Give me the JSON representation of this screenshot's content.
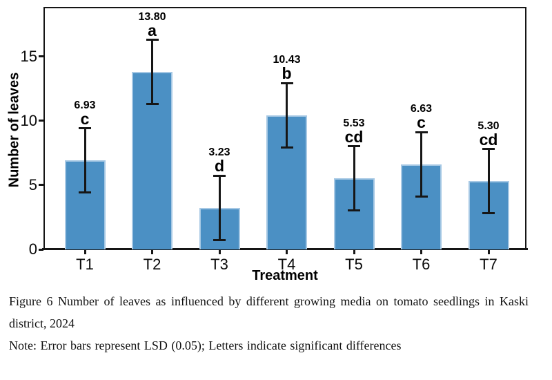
{
  "chart_data": {
    "type": "bar",
    "title": "",
    "xlabel": "Treatment",
    "ylabel": "Number of leaves",
    "categories": [
      "T1",
      "T2",
      "T3",
      "T4",
      "T5",
      "T6",
      "T7"
    ],
    "values": [
      6.93,
      13.8,
      3.23,
      10.43,
      5.53,
      6.63,
      5.3
    ],
    "value_labels": [
      "6.93",
      "13.80",
      "3.23",
      "10.43",
      "5.53",
      "6.63",
      "5.30"
    ],
    "sig_letters": [
      "c",
      "a",
      "d",
      "b",
      "cd",
      "c",
      "cd"
    ],
    "error_bar_halfwidth": 2.5,
    "ylim": [
      0,
      18.87
    ],
    "yticks": [
      0,
      5,
      10,
      15
    ],
    "grid": false,
    "legend": null,
    "bar_color": "#4b90c4",
    "bar_border_color": "#a6c8e4",
    "axis_color": "#151515"
  },
  "caption": {
    "line1": "Figure 6 Number of leaves as influenced by different growing media on tomato seedlings in Kaski",
    "line2": "district, 2024",
    "note": "Note: Error bars represent LSD (0.05); Letters indicate significant differences"
  }
}
